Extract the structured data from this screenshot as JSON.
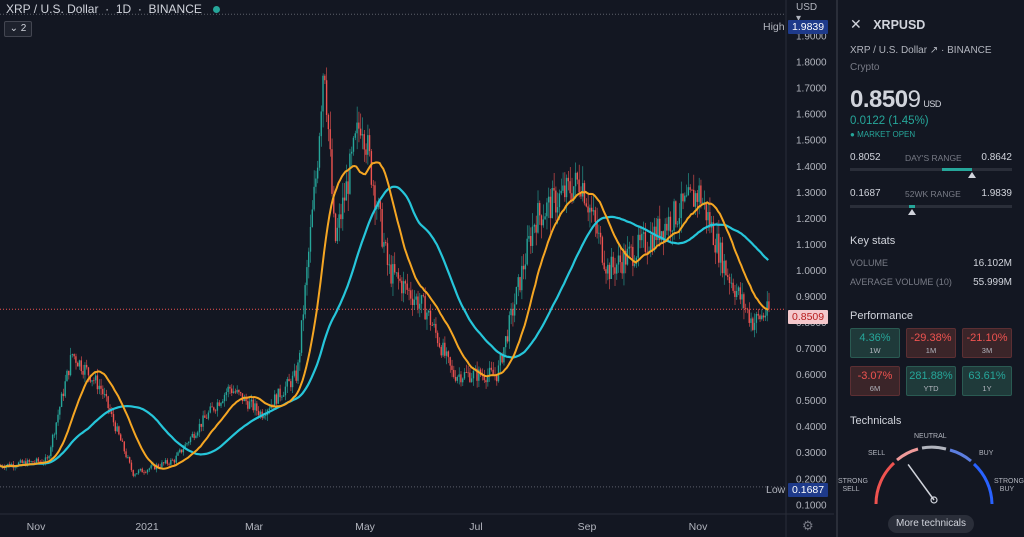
{
  "legend": {
    "symbol": "XRP / U.S. Dollar",
    "interval": "1D",
    "exchange": "BINANCE"
  },
  "indicators_count": "2",
  "axis_currency": "USD",
  "price_axis": {
    "ticks": [
      "1.9000",
      "1.8000",
      "1.7000",
      "1.6000",
      "1.5000",
      "1.4000",
      "1.3000",
      "1.2000",
      "1.1000",
      "1.0000",
      "0.9000",
      "0.8000",
      "0.7000",
      "0.6000",
      "0.5000",
      "0.4000",
      "0.3000",
      "0.2000",
      "0.1000"
    ],
    "tick_values": [
      1.9,
      1.8,
      1.7,
      1.6,
      1.5,
      1.4,
      1.3,
      1.2,
      1.1,
      1.0,
      0.9,
      0.8,
      0.7,
      0.6,
      0.5,
      0.4,
      0.3,
      0.2,
      0.1
    ],
    "high_label": "High",
    "high_value": "1.9839",
    "low_label": "Low",
    "low_value": "0.1687",
    "last_value": "0.8509"
  },
  "time_axis": [
    "Nov",
    "2021",
    "Mar",
    "May",
    "Jul",
    "Sep",
    "Nov"
  ],
  "chart_data": {
    "type": "candlestick",
    "series": [
      {
        "name": "",
        "color": "#f5a623"
      },
      {
        "name": "",
        "color": "#26c6da"
      }
    ],
    "ylim": [
      0.08,
      2.0
    ],
    "approx_close_path": [
      [
        "2020-10-15",
        0.25
      ],
      [
        "2020-11-10",
        0.27
      ],
      [
        "2020-11-24",
        0.68
      ],
      [
        "2020-12-10",
        0.55
      ],
      [
        "2020-12-28",
        0.22
      ],
      [
        "2021-01-20",
        0.27
      ],
      [
        "2021-02-05",
        0.42
      ],
      [
        "2021-02-20",
        0.55
      ],
      [
        "2021-03-10",
        0.45
      ],
      [
        "2021-03-30",
        0.6
      ],
      [
        "2021-04-10",
        1.4
      ],
      [
        "2021-04-14",
        1.84
      ],
      [
        "2021-04-20",
        1.1
      ],
      [
        "2021-05-05",
        1.6
      ],
      [
        "2021-05-20",
        1.0
      ],
      [
        "2021-06-10",
        0.85
      ],
      [
        "2021-06-25",
        0.6
      ],
      [
        "2021-07-20",
        0.6
      ],
      [
        "2021-08-10",
        1.2
      ],
      [
        "2021-09-05",
        1.35
      ],
      [
        "2021-09-20",
        1.0
      ],
      [
        "2021-10-10",
        1.1
      ],
      [
        "2021-11-10",
        1.3
      ],
      [
        "2021-11-25",
        1.0
      ],
      [
        "2021-12-10",
        0.8
      ],
      [
        "2021-12-20",
        0.85
      ]
    ]
  },
  "panel": {
    "symbol": "XRPUSD",
    "description": "XRP / U.S. Dollar",
    "exchange": "BINANCE",
    "category": "Crypto",
    "price_main": "0.850",
    "price_last_digit": "9",
    "currency": "USD",
    "change": "0.0122 (1.45%)",
    "market_status": "MARKET OPEN",
    "days_range": {
      "low": "0.8052",
      "label": "DAY'S RANGE",
      "high": "0.8642",
      "position": 0.75
    },
    "wk52_range": {
      "low": "0.1687",
      "label": "52WK RANGE",
      "high": "1.9839",
      "position": 0.38
    },
    "key_stats_title": "Key stats",
    "stats": [
      {
        "key": "VOLUME",
        "value": "16.102M"
      },
      {
        "key": "AVERAGE VOLUME (10)",
        "value": "55.999M"
      }
    ],
    "performance_title": "Performance",
    "performance": [
      {
        "value": "4.36%",
        "label": "1W",
        "dir": "pos"
      },
      {
        "value": "-29.38%",
        "label": "1M",
        "dir": "neg"
      },
      {
        "value": "-21.10%",
        "label": "3M",
        "dir": "neg"
      },
      {
        "value": "-3.07%",
        "label": "6M",
        "dir": "neg"
      },
      {
        "value": "281.88%",
        "label": "YTD",
        "dir": "pos"
      },
      {
        "value": "63.61%",
        "label": "1Y",
        "dir": "pos"
      }
    ],
    "technicals_title": "Technicals",
    "gauge": {
      "sell": "SELL",
      "neutral": "NEUTRAL",
      "buy": "BUY",
      "strong_sell": "STRONG\nSELL",
      "strong_buy": "STRONG\nBUY",
      "needle": 0.3
    },
    "more_button": "More technicals"
  },
  "colors": {
    "up": "#26a69a",
    "down": "#ef5350",
    "ma_fast": "#f5a623",
    "ma_slow": "#26c6da",
    "bg": "#131722"
  }
}
